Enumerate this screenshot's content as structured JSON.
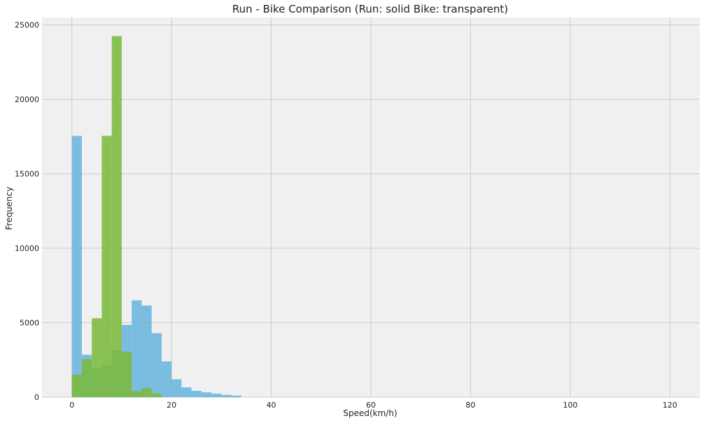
{
  "chart_data": {
    "type": "bar",
    "title": "Run - Bike Comparison (Run: solid Bike: transparent)",
    "xlabel": "Speed(km/h)",
    "ylabel": "Frequency",
    "xlim": [
      -6,
      126
    ],
    "ylim": [
      0,
      25500
    ],
    "xticks": [
      0,
      20,
      40,
      60,
      80,
      100,
      120
    ],
    "yticks": [
      0,
      5000,
      10000,
      15000,
      20000,
      25000
    ],
    "grid": true,
    "background_color": "#f0f0f0",
    "bin_width": 2,
    "series": [
      {
        "color": "#5cb0dd",
        "opacity": 0.8,
        "bins": [
          {
            "x0": 0,
            "x1": 2,
            "value": 17550
          },
          {
            "x0": 2,
            "x1": 4,
            "value": 2850
          },
          {
            "x0": 4,
            "x1": 6,
            "value": 1950
          },
          {
            "x0": 6,
            "x1": 8,
            "value": 2150
          },
          {
            "x0": 8,
            "x1": 10,
            "value": 3150
          },
          {
            "x0": 10,
            "x1": 12,
            "value": 4850
          },
          {
            "x0": 12,
            "x1": 14,
            "value": 6500
          },
          {
            "x0": 14,
            "x1": 16,
            "value": 6150
          },
          {
            "x0": 16,
            "x1": 18,
            "value": 4300
          },
          {
            "x0": 18,
            "x1": 20,
            "value": 2400
          },
          {
            "x0": 20,
            "x1": 22,
            "value": 1200
          },
          {
            "x0": 22,
            "x1": 24,
            "value": 650
          },
          {
            "x0": 24,
            "x1": 26,
            "value": 420
          },
          {
            "x0": 26,
            "x1": 28,
            "value": 320
          },
          {
            "x0": 28,
            "x1": 30,
            "value": 230
          },
          {
            "x0": 30,
            "x1": 32,
            "value": 150
          },
          {
            "x0": 32,
            "x1": 34,
            "value": 100
          }
        ]
      },
      {
        "color": "#7ab93c",
        "opacity": 0.88,
        "bins": [
          {
            "x0": 0,
            "x1": 2,
            "value": 1500
          },
          {
            "x0": 2,
            "x1": 4,
            "value": 2550
          },
          {
            "x0": 4,
            "x1": 6,
            "value": 5300
          },
          {
            "x0": 6,
            "x1": 8,
            "value": 17550
          },
          {
            "x0": 8,
            "x1": 10,
            "value": 24250
          },
          {
            "x0": 10,
            "x1": 12,
            "value": 3050
          },
          {
            "x0": 12,
            "x1": 14,
            "value": 400
          },
          {
            "x0": 14,
            "x1": 16,
            "value": 600
          },
          {
            "x0": 16,
            "x1": 18,
            "value": 250
          }
        ]
      }
    ]
  }
}
